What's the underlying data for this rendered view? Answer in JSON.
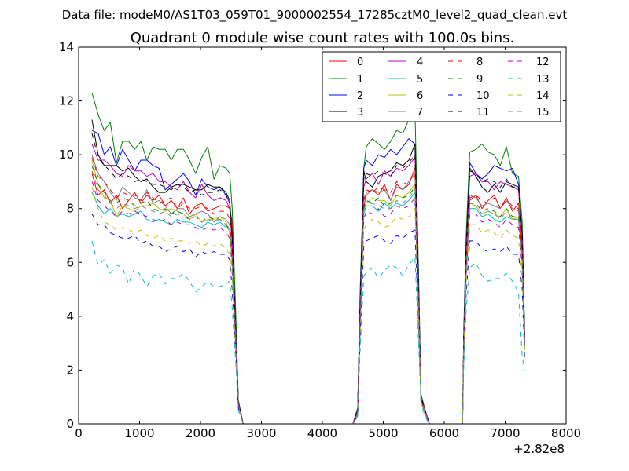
{
  "suptitle": "Data file: modeM0/AS1T03_059T01_9000002554_17285cztM0_level2_quad_clean.evt",
  "chart_data": {
    "type": "line",
    "title": "Quadrant 0 module wise count rates with 100.0s bins.",
    "xlabel": "",
    "ylabel": "",
    "x_offset_label": "+2.82e8",
    "xlim": [
      0,
      8000
    ],
    "ylim": [
      0,
      14
    ],
    "xticks": [
      0,
      1000,
      2000,
      3000,
      4000,
      5000,
      6000,
      7000,
      8000
    ],
    "yticks": [
      0,
      2,
      4,
      6,
      8,
      10,
      12,
      14
    ],
    "legend_position": "top-right",
    "legend_columns": 4,
    "x": [
      220,
      320,
      420,
      520,
      620,
      720,
      820,
      920,
      1020,
      1120,
      1220,
      1320,
      1420,
      1520,
      1620,
      1720,
      1820,
      1920,
      2020,
      2120,
      2220,
      2320,
      2420,
      2480,
      2520,
      2580,
      2620,
      2700,
      3000,
      3500,
      4000,
      4500,
      4580,
      4620,
      4680,
      4720,
      4820,
      4920,
      5020,
      5120,
      5220,
      5320,
      5420,
      5520,
      5580,
      5620,
      5700,
      5760,
      6000,
      6300,
      6320,
      6360,
      6420,
      6520,
      6620,
      6720,
      6820,
      6920,
      7020,
      7120,
      7220,
      7280,
      7320
    ],
    "series": [
      {
        "name": "0",
        "color": "#ff0000",
        "dash": "solid",
        "values": [
          9.3,
          8.5,
          8.7,
          8.2,
          8.5,
          8.0,
          8.3,
          8.6,
          8.2,
          8.5,
          8.3,
          8.5,
          8.1,
          8.3,
          8.0,
          8.4,
          7.8,
          8.1,
          8.2,
          7.9,
          8.0,
          8.1,
          8.1,
          8.0,
          7.5,
          3.5,
          0.8,
          0,
          0,
          0,
          0,
          0,
          0.5,
          4.0,
          8.0,
          8.6,
          8.7,
          8.5,
          8.9,
          8.3,
          8.9,
          8.7,
          8.9,
          9.5,
          4.5,
          1.0,
          0.4,
          0,
          0,
          0,
          3.0,
          6.0,
          8.3,
          8.5,
          8.0,
          8.3,
          8.5,
          8.0,
          8.4,
          7.9,
          8.2,
          6.5,
          3.0
        ]
      },
      {
        "name": "1",
        "color": "#008000",
        "dash": "solid",
        "values": [
          12.3,
          11.5,
          10.9,
          11.2,
          9.7,
          10.5,
          10.5,
          10.2,
          10.5,
          9.8,
          10.3,
          10.2,
          10.2,
          9.8,
          10.2,
          10.2,
          9.8,
          9.3,
          9.9,
          10.3,
          9.1,
          9.6,
          9.5,
          9.3,
          8.0,
          4.0,
          0.9,
          0,
          0,
          0,
          0,
          0,
          0.6,
          5.0,
          9.5,
          10.3,
          10.6,
          10.4,
          10.2,
          10.5,
          10.9,
          10.8,
          11.3,
          11.7,
          5.5,
          1.1,
          0.4,
          0,
          0,
          0,
          3.5,
          7.0,
          10.1,
          10.2,
          10.4,
          10.1,
          10.0,
          9.6,
          10.3,
          9.3,
          9.2,
          7.5,
          3.5
        ]
      },
      {
        "name": "2",
        "color": "#0000ff",
        "dash": "solid",
        "values": [
          10.9,
          10.8,
          10.0,
          10.3,
          9.6,
          10.2,
          9.8,
          9.4,
          9.8,
          9.8,
          9.6,
          9.5,
          8.7,
          8.9,
          9.1,
          9.3,
          9.0,
          8.5,
          9.1,
          8.8,
          8.7,
          8.8,
          8.5,
          8.2,
          6.8,
          3.2,
          0.8,
          0,
          0,
          0,
          0,
          0,
          0.5,
          4.5,
          9.5,
          9.8,
          9.6,
          10.0,
          9.9,
          10.2,
          10.0,
          10.3,
          10.6,
          10.4,
          5.0,
          1.0,
          0.4,
          0,
          0,
          0,
          3.2,
          6.5,
          9.7,
          9.3,
          9.1,
          9.3,
          9.6,
          9.5,
          9.4,
          9.5,
          8.9,
          7.0,
          3.2
        ]
      },
      {
        "name": "3",
        "color": "#000000",
        "dash": "solid",
        "values": [
          11.3,
          10.0,
          9.6,
          9.6,
          9.6,
          9.4,
          9.5,
          9.2,
          9.0,
          9.1,
          8.8,
          8.6,
          8.6,
          8.8,
          8.9,
          8.9,
          8.8,
          8.7,
          8.7,
          8.9,
          8.8,
          8.8,
          8.6,
          8.3,
          7.0,
          3.3,
          0.8,
          0,
          0,
          0,
          0,
          0,
          0.5,
          4.5,
          9.4,
          9.0,
          8.8,
          9.2,
          9.3,
          9.4,
          9.7,
          9.6,
          9.8,
          10.4,
          5.0,
          1.0,
          0.4,
          0,
          0,
          0,
          3.2,
          6.5,
          9.5,
          9.2,
          8.8,
          8.6,
          8.9,
          8.6,
          9.0,
          8.9,
          8.8,
          7.0,
          3.2
        ]
      },
      {
        "name": "4",
        "color": "#bf00bf",
        "dash": "solid",
        "values": [
          10.4,
          9.8,
          9.8,
          9.6,
          9.3,
          9.2,
          9.6,
          9.4,
          9.4,
          9.2,
          9.3,
          9.0,
          9.0,
          8.8,
          8.7,
          9.0,
          8.6,
          8.4,
          8.9,
          8.5,
          8.3,
          8.4,
          8.3,
          8.0,
          6.7,
          3.2,
          0.8,
          0,
          0,
          0,
          0,
          0,
          0.5,
          4.3,
          8.8,
          9.1,
          9.3,
          8.9,
          9.4,
          9.2,
          9.5,
          9.4,
          9.6,
          9.9,
          4.7,
          1.0,
          0.4,
          0,
          0,
          0,
          3.1,
          6.3,
          9.2,
          9.3,
          9.0,
          9.0,
          8.7,
          9.0,
          8.9,
          8.8,
          8.7,
          6.8,
          3.1
        ]
      },
      {
        "name": "5",
        "color": "#00bfbf",
        "dash": "solid",
        "values": [
          8.6,
          8.1,
          7.8,
          8.0,
          7.7,
          7.8,
          7.7,
          7.8,
          7.9,
          7.6,
          7.5,
          7.6,
          7.5,
          7.4,
          7.6,
          7.5,
          7.5,
          7.4,
          7.3,
          7.5,
          7.4,
          7.5,
          7.3,
          7.2,
          6.0,
          2.9,
          0.7,
          0,
          0,
          0,
          0,
          0,
          0.4,
          3.8,
          7.8,
          8.1,
          8.1,
          7.9,
          8.2,
          8.0,
          8.2,
          8.1,
          8.3,
          8.6,
          4.2,
          0.9,
          0.3,
          0,
          0,
          0,
          2.8,
          5.6,
          8.0,
          8.0,
          7.7,
          7.8,
          7.6,
          7.5,
          7.7,
          7.6,
          7.6,
          6.0,
          2.8
        ]
      },
      {
        "name": "6",
        "color": "#bfbf00",
        "dash": "solid",
        "values": [
          9.8,
          8.9,
          8.4,
          8.3,
          7.7,
          8.1,
          8.0,
          7.9,
          8.1,
          8.1,
          8.2,
          8.0,
          7.9,
          8.0,
          7.9,
          7.8,
          7.6,
          7.8,
          7.5,
          7.6,
          7.6,
          7.7,
          7.5,
          7.2,
          6.0,
          2.9,
          0.7,
          0,
          0,
          0,
          0,
          0,
          0.4,
          3.9,
          8.0,
          8.2,
          8.4,
          8.3,
          8.3,
          8.1,
          8.5,
          8.4,
          8.6,
          8.9,
          4.3,
          0.9,
          0.3,
          0,
          0,
          0,
          2.9,
          5.8,
          8.2,
          8.1,
          7.8,
          7.9,
          7.8,
          7.7,
          8.0,
          7.6,
          7.7,
          6.0,
          2.9
        ]
      },
      {
        "name": "7",
        "color": "#808080",
        "dash": "solid",
        "values": [
          10.0,
          9.3,
          9.0,
          8.6,
          8.3,
          8.8,
          8.6,
          8.4,
          8.3,
          8.7,
          8.2,
          8.3,
          8.1,
          7.8,
          8.0,
          8.0,
          7.7,
          7.8,
          7.9,
          7.8,
          7.5,
          7.7,
          7.6,
          7.4,
          6.2,
          3.0,
          0.7,
          0,
          0,
          0,
          0,
          0,
          0.4,
          4.0,
          8.3,
          8.5,
          8.7,
          8.6,
          8.7,
          8.3,
          8.8,
          8.7,
          9.0,
          9.3,
          4.5,
          0.9,
          0.3,
          0,
          0,
          0,
          3.0,
          6.0,
          8.5,
          8.4,
          8.1,
          8.2,
          8.1,
          8.0,
          8.3,
          8.0,
          7.9,
          6.2,
          3.0
        ]
      },
      {
        "name": "8",
        "color": "#ff0000",
        "dash": "dashed",
        "values": [
          9.9,
          9.2,
          9.0,
          8.7,
          8.4,
          8.6,
          8.5,
          8.5,
          8.3,
          8.6,
          8.4,
          8.2,
          8.3,
          8.4,
          8.0,
          8.2,
          8.0,
          8.0,
          8.1,
          8.0,
          7.8,
          7.9,
          7.9,
          7.6,
          6.3,
          3.0,
          0.7,
          0,
          0,
          0,
          0,
          0,
          0.4,
          4.0,
          8.3,
          8.7,
          8.6,
          8.8,
          8.7,
          8.6,
          9.0,
          8.9,
          9.0,
          9.3,
          4.5,
          0.9,
          0.3,
          0,
          0,
          0,
          3.0,
          6.0,
          8.4,
          8.5,
          8.3,
          8.2,
          8.4,
          8.0,
          8.3,
          8.1,
          8.0,
          6.3,
          3.0
        ]
      },
      {
        "name": "9",
        "color": "#008000",
        "dash": "dashed",
        "values": [
          9.6,
          8.9,
          8.6,
          8.3,
          8.2,
          8.4,
          8.3,
          8.1,
          8.2,
          8.3,
          8.0,
          7.9,
          8.0,
          7.8,
          7.9,
          7.8,
          7.6,
          7.7,
          7.5,
          7.7,
          7.6,
          7.6,
          7.4,
          7.2,
          6.0,
          2.9,
          0.7,
          0,
          0,
          0,
          0,
          0,
          0.4,
          3.8,
          8.0,
          8.3,
          8.2,
          8.4,
          8.1,
          8.2,
          8.5,
          8.4,
          8.5,
          8.8,
          4.3,
          0.9,
          0.3,
          0,
          0,
          0,
          2.9,
          5.8,
          8.2,
          8.2,
          7.9,
          8.0,
          7.9,
          7.7,
          8.0,
          7.7,
          7.7,
          6.0,
          2.9
        ]
      },
      {
        "name": "10",
        "color": "#0000ff",
        "dash": "dashed",
        "values": [
          7.8,
          7.4,
          7.4,
          7.1,
          7.0,
          6.9,
          6.9,
          7.0,
          6.7,
          6.8,
          6.6,
          6.6,
          6.4,
          6.5,
          6.6,
          6.4,
          6.5,
          6.2,
          6.4,
          6.3,
          6.4,
          6.3,
          6.3,
          6.1,
          5.0,
          2.5,
          0.6,
          0,
          0,
          0,
          0,
          0,
          0.3,
          3.2,
          6.6,
          6.8,
          6.9,
          7.0,
          6.8,
          6.7,
          7.0,
          6.9,
          7.1,
          7.2,
          3.5,
          0.8,
          0.3,
          0,
          0,
          0,
          2.4,
          4.8,
          6.8,
          6.8,
          6.5,
          6.4,
          6.5,
          6.4,
          6.6,
          6.3,
          6.3,
          5.0,
          2.4
        ]
      },
      {
        "name": "11",
        "color": "#000000",
        "dash": "dashed",
        "values": [
          10.8,
          9.9,
          9.6,
          9.4,
          9.1,
          9.3,
          9.2,
          9.0,
          9.1,
          9.0,
          8.9,
          8.9,
          8.8,
          8.7,
          8.9,
          8.8,
          8.6,
          8.7,
          8.5,
          8.6,
          8.6,
          8.7,
          8.5,
          8.2,
          6.8,
          3.2,
          0.8,
          0,
          0,
          0,
          0,
          0,
          0.5,
          4.4,
          9.1,
          9.3,
          9.2,
          9.4,
          9.3,
          9.2,
          9.6,
          9.5,
          9.7,
          10.0,
          4.8,
          1.0,
          0.4,
          0,
          0,
          0,
          3.2,
          6.4,
          9.4,
          9.3,
          9.0,
          9.1,
          9.0,
          8.8,
          9.1,
          8.8,
          8.8,
          6.9,
          3.2
        ]
      },
      {
        "name": "12",
        "color": "#bf00bf",
        "dash": "dashed",
        "values": [
          9.0,
          8.3,
          8.1,
          7.9,
          7.7,
          7.9,
          7.8,
          7.9,
          7.8,
          7.7,
          7.6,
          7.5,
          7.6,
          7.4,
          7.5,
          7.4,
          7.4,
          7.3,
          7.2,
          7.3,
          7.2,
          7.3,
          7.1,
          6.9,
          5.8,
          2.8,
          0.7,
          0,
          0,
          0,
          0,
          0,
          0.4,
          3.7,
          7.6,
          7.9,
          7.8,
          8.0,
          7.7,
          7.8,
          8.1,
          8.0,
          8.1,
          8.4,
          4.1,
          0.9,
          0.3,
          0,
          0,
          0,
          2.8,
          5.5,
          7.8,
          7.8,
          7.5,
          7.6,
          7.5,
          7.3,
          7.6,
          7.4,
          7.3,
          5.8,
          2.8
        ]
      },
      {
        "name": "13",
        "color": "#00bfbf",
        "dash": "dashed",
        "values": [
          6.8,
          5.9,
          6.1,
          5.6,
          5.9,
          5.8,
          5.2,
          5.8,
          5.5,
          5.1,
          5.5,
          5.6,
          5.2,
          5.4,
          5.4,
          5.6,
          5.3,
          4.9,
          5.1,
          5.3,
          5.1,
          5.1,
          5.2,
          5.3,
          4.3,
          2.2,
          0.5,
          0,
          0,
          0,
          0,
          0,
          0.3,
          2.8,
          5.5,
          5.6,
          5.8,
          5.4,
          5.7,
          5.9,
          5.8,
          5.5,
          5.9,
          6.2,
          3.0,
          0.7,
          0.2,
          0,
          0,
          0,
          2.1,
          4.2,
          5.8,
          6.0,
          5.5,
          5.3,
          5.4,
          5.4,
          5.6,
          5.3,
          4.9,
          2.5,
          2.0
        ]
      },
      {
        "name": "14",
        "color": "#bfbf00",
        "dash": "dashed",
        "values": [
          8.8,
          8.0,
          7.5,
          7.4,
          7.2,
          7.3,
          7.2,
          7.1,
          7.2,
          7.0,
          6.9,
          7.0,
          6.8,
          6.9,
          6.8,
          6.8,
          6.7,
          6.8,
          6.6,
          6.7,
          6.6,
          6.7,
          6.5,
          6.3,
          5.3,
          2.6,
          0.6,
          0,
          0,
          0,
          0,
          0,
          0.4,
          3.4,
          7.2,
          7.4,
          7.6,
          7.5,
          7.3,
          7.4,
          7.7,
          7.6,
          7.7,
          8.0,
          3.9,
          0.8,
          0.3,
          0,
          0,
          0,
          2.6,
          5.2,
          7.4,
          7.4,
          7.1,
          7.2,
          7.1,
          6.9,
          7.2,
          7.0,
          6.9,
          5.4,
          2.6
        ]
      },
      {
        "name": "15",
        "color": "#808080",
        "dash": "dashed",
        "values": [
          9.4,
          8.7,
          8.5,
          8.2,
          8.0,
          8.2,
          8.1,
          8.0,
          8.1,
          8.0,
          7.9,
          7.8,
          7.9,
          7.7,
          7.8,
          7.7,
          7.6,
          7.7,
          7.5,
          7.6,
          7.5,
          7.6,
          7.4,
          7.1,
          5.9,
          2.8,
          0.7,
          0,
          0,
          0,
          0,
          0,
          0.4,
          3.8,
          7.9,
          8.1,
          8.2,
          8.1,
          8.0,
          8.0,
          8.3,
          8.2,
          8.4,
          8.7,
          4.2,
          0.9,
          0.3,
          0,
          0,
          0,
          2.9,
          5.7,
          8.1,
          8.1,
          7.8,
          7.9,
          7.8,
          7.6,
          7.9,
          7.6,
          7.6,
          6.0,
          2.9
        ]
      }
    ]
  }
}
